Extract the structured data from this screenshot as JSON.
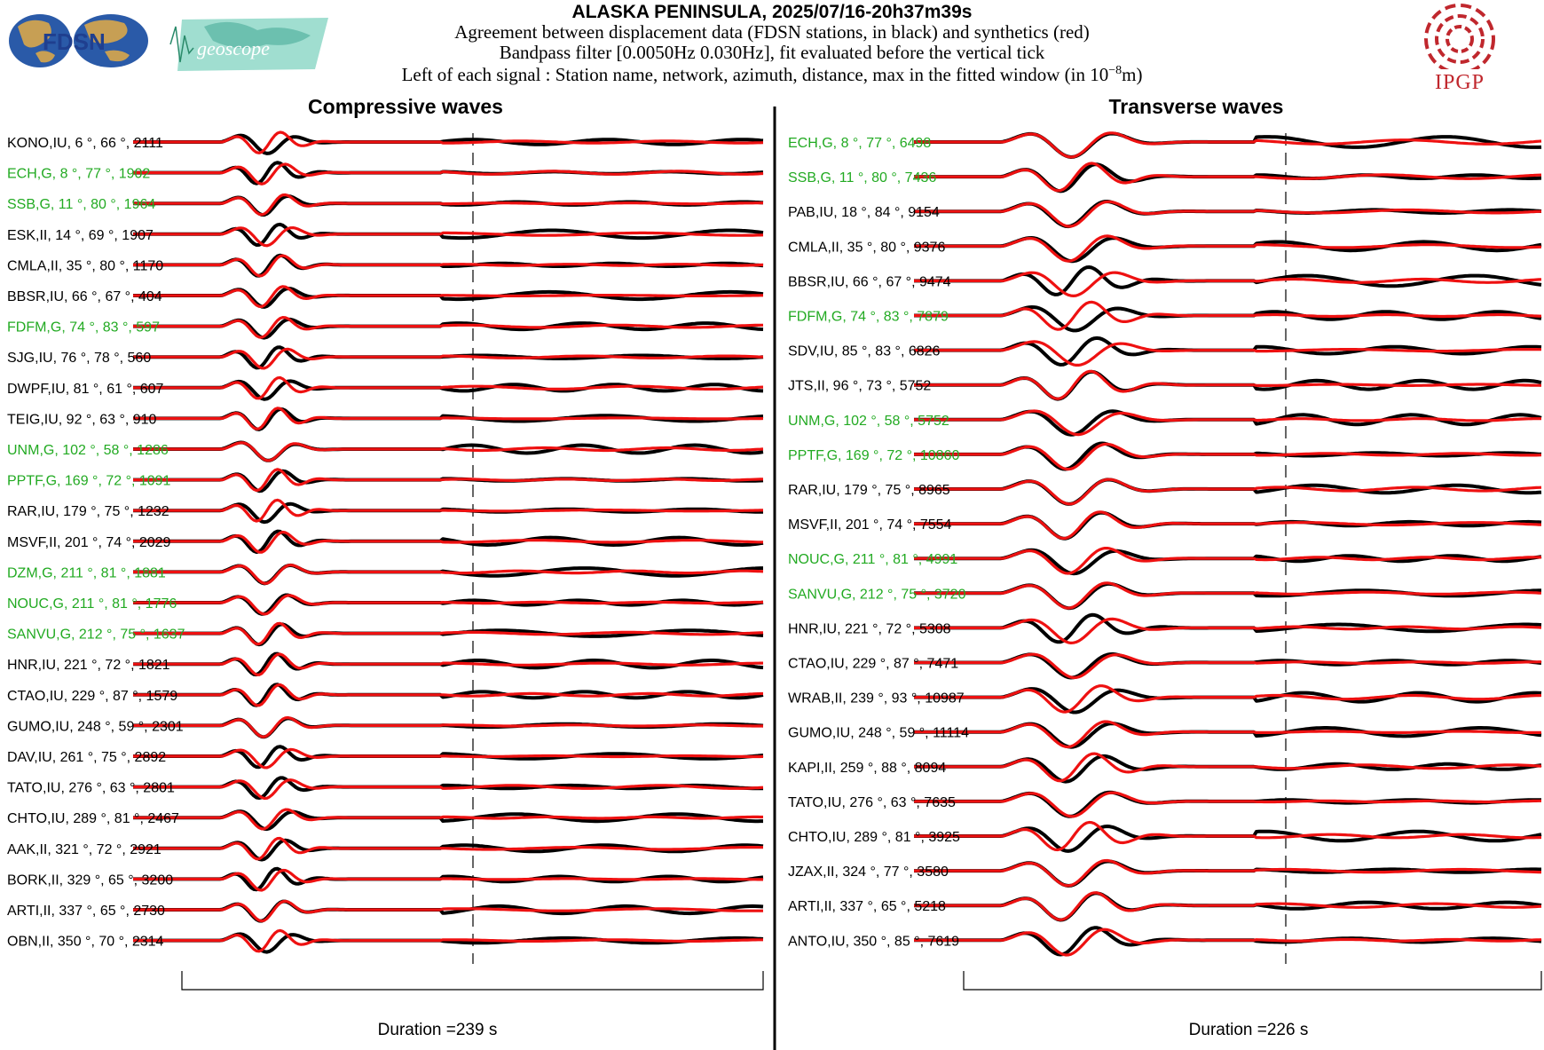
{
  "header": {
    "title": "ALASKA PENINSULA, 2025/07/16-20h37m39s",
    "line1": "Agreement between displacement data (FDSN stations, in black) and synthetics (red)",
    "line2": "Bandpass filter [0.0050Hz 0.030Hz], fit evaluated before the vertical tick",
    "line3_pre": "Left of each signal : Station name, network, azimuth, distance, max in the fitted window (in 10",
    "line3_exp": "−8",
    "line3_post": "m)"
  },
  "logos": {
    "fdsn": "FDSN",
    "geoscope": "geoscope",
    "ipgp": "IPGP"
  },
  "colors": {
    "data": "#000000",
    "synthetic": "#ee1111",
    "geoscope_label": "#22aa22",
    "default_label": "#000000",
    "ipgp": "#c0272d",
    "fdsn_blue": "#1f3f8f",
    "geoscope_teal": "#6cc8b8"
  },
  "chart_data": [
    {
      "type": "line",
      "title": "Compressive waves",
      "xlabel": "Duration =239 s",
      "series": [
        {
          "name": "data",
          "color": "#000000"
        },
        {
          "name": "synthetics",
          "color": "#ee1111"
        }
      ],
      "traces": [
        {
          "label": "KONO,IU, 6 °, 66 °, 2111",
          "network": "IU"
        },
        {
          "label": "ECH,G, 8 °, 77 °, 1902",
          "network": "G"
        },
        {
          "label": "SSB,G, 11 °, 80 °, 1964",
          "network": "G"
        },
        {
          "label": "ESK,II, 14 °, 69 °, 1907",
          "network": "II"
        },
        {
          "label": "CMLA,II, 35 °, 80 °, 1170",
          "network": "II"
        },
        {
          "label": "BBSR,IU, 66 °, 67 °, 404",
          "network": "IU"
        },
        {
          "label": "FDFM,G, 74 °, 83 °, 597",
          "network": "G"
        },
        {
          "label": "SJG,IU, 76 °, 78 °, 560",
          "network": "IU"
        },
        {
          "label": "DWPF,IU, 81 °, 61 °, 607",
          "network": "IU"
        },
        {
          "label": "TEIG,IU, 92 °, 63 °, 910",
          "network": "IU"
        },
        {
          "label": "UNM,G, 102 °, 58 °, 1286",
          "network": "G"
        },
        {
          "label": "PPTF,G, 169 °, 72 °, 1091",
          "network": "G"
        },
        {
          "label": "RAR,IU, 179 °, 75 °, 1232",
          "network": "IU"
        },
        {
          "label": "MSVF,II, 201 °, 74 °, 2029",
          "network": "II"
        },
        {
          "label": "DZM,G, 211 °, 81 °, 1881",
          "network": "G"
        },
        {
          "label": "NOUC,G, 211 °, 81 °, 1776",
          "network": "G"
        },
        {
          "label": "SANVU,G, 212 °, 75 °, 1637",
          "network": "G"
        },
        {
          "label": "HNR,IU, 221 °, 72 °, 1821",
          "network": "IU"
        },
        {
          "label": "CTAO,IU, 229 °, 87 °, 1579",
          "network": "IU"
        },
        {
          "label": "GUMO,IU, 248 °, 59 °, 2301",
          "network": "IU"
        },
        {
          "label": "DAV,IU, 261 °, 75 °, 2892",
          "network": "IU"
        },
        {
          "label": "TATO,IU, 276 °, 63 °, 2801",
          "network": "IU"
        },
        {
          "label": "CHTO,IU, 289 °, 81 °, 2467",
          "network": "IU"
        },
        {
          "label": "AAK,II, 321 °, 72 °, 2921",
          "network": "II"
        },
        {
          "label": "BORK,II, 329 °, 65 °, 3200",
          "network": "II"
        },
        {
          "label": "ARTI,II, 337 °, 65 °, 2730",
          "network": "II"
        },
        {
          "label": "OBN,II, 350 °, 70 °, 2314",
          "network": "II"
        }
      ]
    },
    {
      "type": "line",
      "title": "Transverse waves",
      "xlabel": "Duration =226 s",
      "series": [
        {
          "name": "data",
          "color": "#000000"
        },
        {
          "name": "synthetics",
          "color": "#ee1111"
        }
      ],
      "traces": [
        {
          "label": "ECH,G, 8 °, 77 °, 6498",
          "network": "G"
        },
        {
          "label": "SSB,G, 11 °, 80 °, 7436",
          "network": "G"
        },
        {
          "label": "PAB,IU, 18 °, 84 °, 9154",
          "network": "IU"
        },
        {
          "label": "CMLA,II, 35 °, 80 °, 9376",
          "network": "II"
        },
        {
          "label": "BBSR,IU, 66 °, 67 °, 9474",
          "network": "IU"
        },
        {
          "label": "FDFM,G, 74 °, 83 °, 7879",
          "network": "G"
        },
        {
          "label": "SDV,IU, 85 °, 83 °, 6826",
          "network": "IU"
        },
        {
          "label": "JTS,II, 96 °, 73 °, 5752",
          "network": "II"
        },
        {
          "label": "UNM,G, 102 °, 58 °, 5752",
          "network": "G"
        },
        {
          "label": "PPTF,G, 169 °, 72 °, 10860",
          "network": "G"
        },
        {
          "label": "RAR,IU, 179 °, 75 °, 8965",
          "network": "IU"
        },
        {
          "label": "MSVF,II, 201 °, 74 °, 7554",
          "network": "II"
        },
        {
          "label": "NOUC,G, 211 °, 81 °, 4991",
          "network": "G"
        },
        {
          "label": "SANVU,G, 212 °, 75 °, 3720",
          "network": "G"
        },
        {
          "label": "HNR,IU, 221 °, 72 °, 5308",
          "network": "IU"
        },
        {
          "label": "CTAO,IU, 229 °, 87 °, 7471",
          "network": "IU"
        },
        {
          "label": "WRAB,II, 239 °, 93 °, 10987",
          "network": "II"
        },
        {
          "label": "GUMO,IU, 248 °, 59 °, 11114",
          "network": "IU"
        },
        {
          "label": "KAPI,II, 259 °, 88 °, 8094",
          "network": "II"
        },
        {
          "label": "TATO,IU, 276 °, 63 °, 7635",
          "network": "IU"
        },
        {
          "label": "CHTO,IU, 289 °, 81 °, 3925",
          "network": "IU"
        },
        {
          "label": "JZAX,II, 324 °, 77 °, 3580",
          "network": "II"
        },
        {
          "label": "ARTI,II, 337 °, 65 °, 5218",
          "network": "II"
        },
        {
          "label": "ANTO,IU, 350 °, 85 °, 7619",
          "network": "IU"
        }
      ]
    }
  ]
}
